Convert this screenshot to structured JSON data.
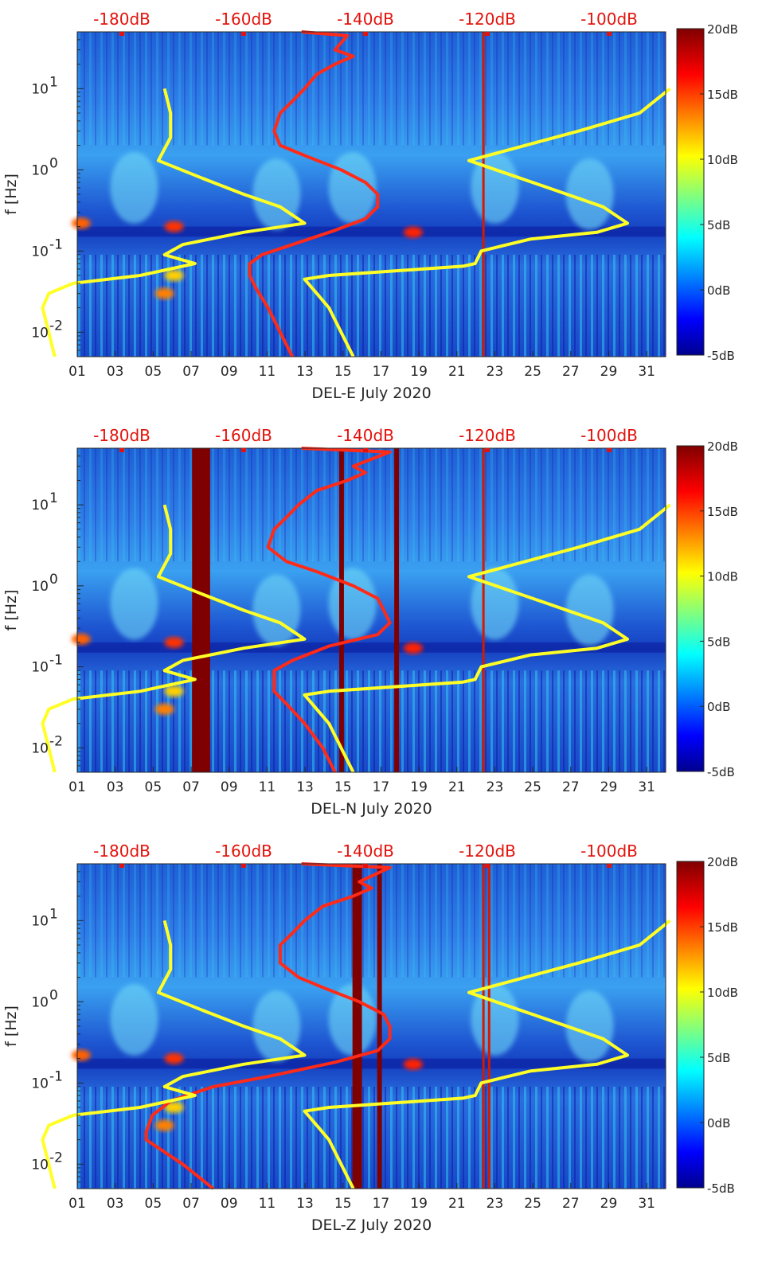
{
  "chart_data": [
    {
      "type": "heatmap",
      "title": "",
      "xlabel": "DEL-E July 2020",
      "ylabel": "f [Hz]",
      "x_ticks": [
        "01",
        "03",
        "05",
        "07",
        "09",
        "11",
        "13",
        "15",
        "17",
        "19",
        "21",
        "23",
        "25",
        "27",
        "29",
        "31"
      ],
      "xlim": [
        1,
        32
      ],
      "ylim_hz": [
        0.005,
        50
      ],
      "y_scale": "log",
      "y_ticks": [
        {
          "value": 0.01,
          "base": "10",
          "exp": "-2"
        },
        {
          "value": 0.1,
          "base": "10",
          "exp": "-1"
        },
        {
          "value": 1,
          "base": "10",
          "exp": "0"
        },
        {
          "value": 10,
          "base": "10",
          "exp": "1"
        }
      ],
      "colorbar": {
        "ticks": [
          "-5dB",
          "0dB",
          "5dB",
          "10dB",
          "15dB",
          "20dB"
        ],
        "range": [
          -5,
          20
        ]
      },
      "db_axis": {
        "ticks": [
          "-180dB",
          "-160dB",
          "-140dB",
          "-120dB",
          "-100dB"
        ],
        "values": [
          -180,
          -160,
          -140,
          -120,
          -100
        ],
        "position": "top"
      },
      "series": [
        {
          "color": "#ff2a18",
          "points": [
            [
              -150.5,
              50
            ],
            [
              -143,
              45
            ],
            [
              -145,
              30
            ],
            [
              -142,
              25
            ],
            [
              -145,
              20
            ],
            [
              -148,
              15
            ],
            [
              -150,
              10
            ],
            [
              -152,
              7
            ],
            [
              -154,
              5
            ],
            [
              -155,
              3
            ],
            [
              -154,
              2
            ],
            [
              -150,
              1.5
            ],
            [
              -144,
              1
            ],
            [
              -140,
              0.7
            ],
            [
              -138,
              0.5
            ],
            [
              -138,
              0.35
            ],
            [
              -140,
              0.25
            ],
            [
              -145,
              0.18
            ],
            [
              -152,
              0.12
            ],
            [
              -157,
              0.09
            ],
            [
              -159,
              0.07
            ],
            [
              -159,
              0.05
            ],
            [
              -158,
              0.035
            ],
            [
              -156,
              0.02
            ],
            [
              -154,
              0.01
            ],
            [
              -152,
              0.005
            ]
          ]
        },
        {
          "color": "#ffff26",
          "points": [
            [
              -173,
              10
            ],
            [
              -172,
              5
            ],
            [
              -172,
              2.5
            ],
            [
              -174,
              1.3
            ],
            [
              -167,
              0.8
            ],
            [
              -160,
              0.5
            ],
            [
              -154,
              0.35
            ],
            [
              -150,
              0.22
            ],
            [
              -160,
              0.17
            ],
            [
              -170,
              0.12
            ],
            [
              -173,
              0.09
            ],
            [
              -168,
              0.07
            ],
            [
              -177,
              0.05
            ],
            [
              -188,
              0.04
            ],
            [
              -192,
              0.03
            ],
            [
              -193,
              0.02
            ],
            [
              -192,
              0.01
            ],
            [
              -191,
              0.005
            ]
          ]
        },
        {
          "color": "#ffff26",
          "points": [
            [
              -90,
              10
            ],
            [
              -95,
              5
            ],
            [
              -105,
              3
            ],
            [
              -123,
              1.3
            ],
            [
              -110,
              0.6
            ],
            [
              -101,
              0.35
            ],
            [
              -97,
              0.22
            ],
            [
              -102,
              0.17
            ],
            [
              -113,
              0.14
            ],
            [
              -121,
              0.1
            ],
            [
              -122,
              0.07
            ],
            [
              -124,
              0.065
            ],
            [
              -146,
              0.05
            ],
            [
              -150,
              0.045
            ],
            [
              -148,
              0.03
            ],
            [
              -146,
              0.02
            ],
            [
              -144,
              0.01
            ],
            [
              -142,
              0.005
            ]
          ]
        }
      ],
      "bands": [],
      "red_lines": [
        22.4
      ]
    },
    {
      "type": "heatmap",
      "title": "",
      "xlabel": "DEL-N July 2020",
      "ylabel": "f [Hz]",
      "x_ticks": [
        "01",
        "03",
        "05",
        "07",
        "09",
        "11",
        "13",
        "15",
        "17",
        "19",
        "21",
        "23",
        "25",
        "27",
        "29",
        "31"
      ],
      "xlim": [
        1,
        32
      ],
      "ylim_hz": [
        0.005,
        50
      ],
      "y_scale": "log",
      "y_ticks": [
        {
          "value": 0.01,
          "base": "10",
          "exp": "-2"
        },
        {
          "value": 0.1,
          "base": "10",
          "exp": "-1"
        },
        {
          "value": 1,
          "base": "10",
          "exp": "0"
        },
        {
          "value": 10,
          "base": "10",
          "exp": "1"
        }
      ],
      "colorbar": {
        "ticks": [
          "-5dB",
          "0dB",
          "5dB",
          "10dB",
          "15dB",
          "20dB"
        ],
        "range": [
          -5,
          20
        ]
      },
      "db_axis": {
        "ticks": [
          "-180dB",
          "-160dB",
          "-140dB",
          "-120dB",
          "-100dB"
        ],
        "values": [
          -180,
          -160,
          -140,
          -120,
          -100
        ],
        "position": "top"
      },
      "series": [
        {
          "color": "#ff2a18",
          "points": [
            [
              -150.5,
              50
            ],
            [
              -136,
              45
            ],
            [
              -142,
              30
            ],
            [
              -140,
              25
            ],
            [
              -143,
              20
            ],
            [
              -148,
              15
            ],
            [
              -151,
              10
            ],
            [
              -153,
              7
            ],
            [
              -155,
              5
            ],
            [
              -156,
              3
            ],
            [
              -153,
              2
            ],
            [
              -148,
              1.5
            ],
            [
              -142,
              1
            ],
            [
              -138,
              0.7
            ],
            [
              -137,
              0.5
            ],
            [
              -136,
              0.35
            ],
            [
              -138,
              0.25
            ],
            [
              -146,
              0.18
            ],
            [
              -152,
              0.12
            ],
            [
              -155,
              0.09
            ],
            [
              -155,
              0.07
            ],
            [
              -155,
              0.05
            ],
            [
              -153,
              0.035
            ],
            [
              -150,
              0.02
            ],
            [
              -147,
              0.01
            ],
            [
              -145,
              0.005
            ]
          ]
        },
        {
          "color": "#ffff26",
          "points": [
            [
              -173,
              10
            ],
            [
              -172,
              5
            ],
            [
              -172,
              2.5
            ],
            [
              -174,
              1.3
            ],
            [
              -167,
              0.8
            ],
            [
              -160,
              0.5
            ],
            [
              -154,
              0.35
            ],
            [
              -150,
              0.22
            ],
            [
              -160,
              0.17
            ],
            [
              -170,
              0.12
            ],
            [
              -173,
              0.09
            ],
            [
              -168,
              0.07
            ],
            [
              -177,
              0.05
            ],
            [
              -188,
              0.04
            ],
            [
              -192,
              0.03
            ],
            [
              -193,
              0.02
            ],
            [
              -192,
              0.01
            ],
            [
              -191,
              0.005
            ]
          ]
        },
        {
          "color": "#ffff26",
          "points": [
            [
              -90,
              10
            ],
            [
              -95,
              5
            ],
            [
              -105,
              3
            ],
            [
              -123,
              1.3
            ],
            [
              -110,
              0.6
            ],
            [
              -101,
              0.35
            ],
            [
              -97,
              0.22
            ],
            [
              -102,
              0.17
            ],
            [
              -113,
              0.14
            ],
            [
              -121,
              0.1
            ],
            [
              -122,
              0.07
            ],
            [
              -124,
              0.065
            ],
            [
              -146,
              0.05
            ],
            [
              -150,
              0.045
            ],
            [
              -148,
              0.03
            ],
            [
              -146,
              0.02
            ],
            [
              -144,
              0.01
            ],
            [
              -142,
              0.005
            ]
          ]
        }
      ],
      "bands": [
        [
          7.05,
          8.0
        ],
        [
          14.8,
          15.05
        ],
        [
          17.7,
          17.95
        ]
      ],
      "red_lines": [
        22.4
      ]
    },
    {
      "type": "heatmap",
      "title": "",
      "xlabel": "DEL-Z July 2020",
      "ylabel": "f [Hz]",
      "x_ticks": [
        "01",
        "03",
        "05",
        "07",
        "09",
        "11",
        "13",
        "15",
        "17",
        "19",
        "21",
        "23",
        "25",
        "27",
        "29",
        "31"
      ],
      "xlim": [
        1,
        32
      ],
      "ylim_hz": [
        0.005,
        50
      ],
      "y_scale": "log",
      "y_ticks": [
        {
          "value": 0.01,
          "base": "10",
          "exp": "-2"
        },
        {
          "value": 0.1,
          "base": "10",
          "exp": "-1"
        },
        {
          "value": 1,
          "base": "10",
          "exp": "0"
        },
        {
          "value": 10,
          "base": "10",
          "exp": "1"
        }
      ],
      "colorbar": {
        "ticks": [
          "-5dB",
          "0dB",
          "5dB",
          "10dB",
          "15dB",
          "20dB"
        ],
        "range": [
          -5,
          20
        ]
      },
      "db_axis": {
        "ticks": [
          "-180dB",
          "-160dB",
          "-140dB",
          "-120dB",
          "-100dB"
        ],
        "values": [
          -180,
          -160,
          -140,
          -120,
          -100
        ],
        "position": "top"
      },
      "series": [
        {
          "color": "#ff2a18",
          "points": [
            [
              -150.5,
              50
            ],
            [
              -136,
              45
            ],
            [
              -141,
              30
            ],
            [
              -139,
              25
            ],
            [
              -142,
              20
            ],
            [
              -147,
              15
            ],
            [
              -150,
              10
            ],
            [
              -152,
              7
            ],
            [
              -154,
              5
            ],
            [
              -154,
              3
            ],
            [
              -151,
              2
            ],
            [
              -147,
              1.5
            ],
            [
              -141,
              1
            ],
            [
              -137,
              0.7
            ],
            [
              -136,
              0.5
            ],
            [
              -136,
              0.35
            ],
            [
              -138,
              0.25
            ],
            [
              -145,
              0.18
            ],
            [
              -156,
              0.12
            ],
            [
              -165,
              0.09
            ],
            [
              -172,
              0.06
            ],
            [
              -175,
              0.04
            ],
            [
              -176,
              0.025
            ],
            [
              -176,
              0.02
            ],
            [
              -170,
              0.01
            ],
            [
              -165,
              0.005
            ]
          ]
        },
        {
          "color": "#ffff26",
          "points": [
            [
              -173,
              10
            ],
            [
              -172,
              5
            ],
            [
              -172,
              2.5
            ],
            [
              -174,
              1.3
            ],
            [
              -167,
              0.8
            ],
            [
              -160,
              0.5
            ],
            [
              -154,
              0.35
            ],
            [
              -150,
              0.22
            ],
            [
              -160,
              0.17
            ],
            [
              -170,
              0.12
            ],
            [
              -173,
              0.09
            ],
            [
              -168,
              0.07
            ],
            [
              -177,
              0.05
            ],
            [
              -188,
              0.04
            ],
            [
              -192,
              0.03
            ],
            [
              -193,
              0.02
            ],
            [
              -192,
              0.01
            ],
            [
              -191,
              0.005
            ]
          ]
        },
        {
          "color": "#ffff26",
          "points": [
            [
              -90,
              10
            ],
            [
              -95,
              5
            ],
            [
              -105,
              3
            ],
            [
              -123,
              1.3
            ],
            [
              -110,
              0.6
            ],
            [
              -101,
              0.35
            ],
            [
              -97,
              0.22
            ],
            [
              -102,
              0.17
            ],
            [
              -113,
              0.14
            ],
            [
              -121,
              0.1
            ],
            [
              -122,
              0.07
            ],
            [
              -124,
              0.065
            ],
            [
              -146,
              0.05
            ],
            [
              -150,
              0.045
            ],
            [
              -148,
              0.03
            ],
            [
              -146,
              0.02
            ],
            [
              -144,
              0.01
            ],
            [
              -142,
              0.005
            ]
          ]
        }
      ],
      "bands": [
        [
          15.5,
          16.0
        ],
        [
          16.8,
          17.05
        ]
      ],
      "red_lines": [
        22.4,
        22.7
      ]
    }
  ]
}
